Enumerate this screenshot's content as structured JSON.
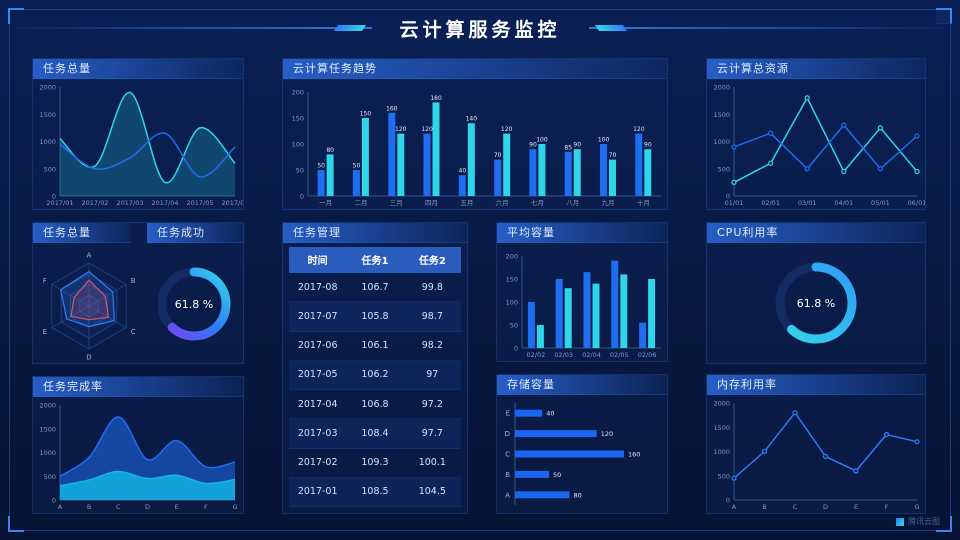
{
  "header": {
    "title": "云计算服务监控"
  },
  "footer": {
    "logo": "腾讯云图"
  },
  "panels": {
    "task_total_line": {
      "title": "任务总量"
    },
    "task_radar": {
      "title": "任务总量"
    },
    "task_success": {
      "title": "任务成功"
    },
    "task_completion": {
      "title": "任务完成率"
    },
    "task_trend": {
      "title": "云计算任务趋势"
    },
    "task_table": {
      "title": "任务管理"
    },
    "avg_capacity": {
      "title": "平均容量"
    },
    "storage": {
      "title": "存储容量"
    },
    "cloud_resource": {
      "title": "云计算总资源"
    },
    "cpu": {
      "title": "CPU利用率"
    },
    "memory": {
      "title": "内存利用率"
    }
  },
  "table": {
    "headers": [
      "时间",
      "任务1",
      "任务2"
    ],
    "rows": [
      [
        "2017-08",
        "106.7",
        "99.8"
      ],
      [
        "2017-07",
        "105.8",
        "98.7"
      ],
      [
        "2017-06",
        "106.1",
        "98.2"
      ],
      [
        "2017-05",
        "106.2",
        "97"
      ],
      [
        "2017-04",
        "106.8",
        "97.2"
      ],
      [
        "2017-03",
        "108.4",
        "97.7"
      ],
      [
        "2017-02",
        "109.3",
        "100.1"
      ],
      [
        "2017-01",
        "108.5",
        "104.5"
      ]
    ]
  },
  "colors": {
    "blue": "#1f6df0",
    "cyan": "#2fd5e8",
    "red": "#ff4d4f",
    "axis": "#33598f",
    "tick_text": "#7e9ac9",
    "background": "#081a45"
  },
  "chart_data": [
    {
      "id": "task_total_line",
      "type": "line",
      "title": "任务总量",
      "x": [
        "2017/01",
        "2017/02",
        "2017/03",
        "2017/04",
        "2017/05",
        "2017/06"
      ],
      "ylim": [
        0,
        2000
      ],
      "yticks": [
        0,
        500,
        1000,
        1500,
        2000
      ],
      "series": [
        {
          "name": "series-cyan",
          "color": "#2fd5e8",
          "smooth": true,
          "area": true,
          "fillOpacity": 0.22,
          "values": [
            1050,
            550,
            1900,
            250,
            1250,
            600
          ]
        },
        {
          "name": "series-blue",
          "color": "#1f6df0",
          "smooth": true,
          "area": false,
          "values": [
            950,
            500,
            700,
            1150,
            350,
            900
          ]
        }
      ]
    },
    {
      "id": "task_trend",
      "type": "bar",
      "title": "云计算任务趋势",
      "labels": true,
      "x": [
        "一月",
        "二月",
        "三月",
        "四月",
        "五月",
        "六月",
        "七月",
        "八月",
        "九月",
        "十月"
      ],
      "ylim": [
        0,
        200
      ],
      "yticks": [
        0,
        50,
        100,
        150,
        200
      ],
      "series": [
        {
          "name": "任务1",
          "color": "#1f6df0",
          "values": [
            50,
            50,
            160,
            120,
            40,
            70,
            90,
            85,
            100,
            120
          ]
        },
        {
          "name": "任务2",
          "color": "#2fd5e8",
          "values": [
            80,
            150,
            120,
            180,
            140,
            120,
            100,
            90,
            70,
            90
          ]
        }
      ]
    },
    {
      "id": "cloud_resource",
      "type": "line",
      "title": "云计算总资源",
      "x": [
        "01/01",
        "02/01",
        "03/01",
        "04/01",
        "05/01",
        "06/01"
      ],
      "ylim": [
        0,
        2000
      ],
      "yticks": [
        0,
        500,
        1000,
        1500,
        2000
      ],
      "series": [
        {
          "name": "series-cyan",
          "color": "#2fd5e8",
          "smooth": false,
          "markers": true,
          "values": [
            250,
            600,
            1800,
            450,
            1250,
            450
          ]
        },
        {
          "name": "series-blue",
          "color": "#1f6df0",
          "smooth": false,
          "markers": true,
          "values": [
            900,
            1150,
            500,
            1300,
            500,
            1100
          ]
        }
      ]
    },
    {
      "id": "task_radar",
      "type": "radar",
      "title": "任务总量",
      "indicators": [
        "A",
        "B",
        "C",
        "D",
        "E",
        "F"
      ],
      "max": 5,
      "series": [
        {
          "name": "series-red",
          "color": "#ff4d4f",
          "values": [
            3,
            2.2,
            2.6,
            1.6,
            2.4,
            2
          ]
        },
        {
          "name": "series-blue",
          "color": "#2e7cf6",
          "values": [
            4,
            3.2,
            3.4,
            2.4,
            3,
            3.8
          ]
        }
      ]
    },
    {
      "id": "task_success_gauge",
      "type": "gauge",
      "title": "任务成功",
      "value": 61.8,
      "label": "61.8 %",
      "r": 32,
      "colors": [
        "#7b3ff2",
        "#2e7cf6",
        "#35d6e8"
      ]
    },
    {
      "id": "cpu_gauge",
      "type": "gauge",
      "title": "CPU利用率",
      "value": 61.8,
      "label": "61.8 %",
      "r": 36,
      "colors": [
        "#35d6e8",
        "#2e9df6"
      ]
    },
    {
      "id": "avg_capacity",
      "type": "bar",
      "title": "平均容量",
      "labels": false,
      "x": [
        "02/02",
        "02/03",
        "02/04",
        "02/05",
        "02/06"
      ],
      "ylim": [
        0,
        200
      ],
      "yticks": [
        0,
        50,
        100,
        150,
        200
      ],
      "series": [
        {
          "name": "series-blue",
          "color": "#1f6df0",
          "values": [
            100,
            150,
            165,
            190,
            55
          ]
        },
        {
          "name": "series-cyan",
          "color": "#2fd5e8",
          "values": [
            50,
            130,
            140,
            160,
            150
          ]
        }
      ]
    },
    {
      "id": "storage",
      "type": "hbar",
      "title": "存储容量",
      "categories": [
        "A",
        "B",
        "C",
        "D",
        "E"
      ],
      "values": [
        80,
        50,
        160,
        120,
        40
      ],
      "xlim": [
        0,
        185
      ],
      "color": "#1a66f0"
    },
    {
      "id": "memory",
      "type": "line",
      "title": "内存利用率",
      "x": [
        "A",
        "B",
        "C",
        "D",
        "E",
        "F",
        "G"
      ],
      "ylim": [
        0,
        2000
      ],
      "yticks": [
        0,
        500,
        1000,
        1500,
        2000
      ],
      "series": [
        {
          "name": "series-blue",
          "color": "#2e7cf6",
          "smooth": false,
          "markers": true,
          "values": [
            450,
            1000,
            1800,
            900,
            600,
            1350,
            1200
          ]
        }
      ]
    },
    {
      "id": "task_completion",
      "type": "line",
      "title": "任务完成率",
      "x": [
        "A",
        "B",
        "C",
        "D",
        "E",
        "F",
        "G"
      ],
      "ylim": [
        0,
        2000
      ],
      "yticks": [
        0,
        500,
        1000,
        1500,
        2000
      ],
      "series": [
        {
          "name": "area-blue",
          "color": "#1f6df0",
          "smooth": true,
          "area": true,
          "fillOpacity": 0.55,
          "values": [
            500,
            900,
            1750,
            850,
            1250,
            700,
            800
          ]
        },
        {
          "name": "area-cyan",
          "color": "#12b8e6",
          "smooth": true,
          "area": true,
          "fillOpacity": 0.8,
          "values": [
            300,
            420,
            600,
            450,
            520,
            350,
            430
          ]
        }
      ]
    }
  ]
}
